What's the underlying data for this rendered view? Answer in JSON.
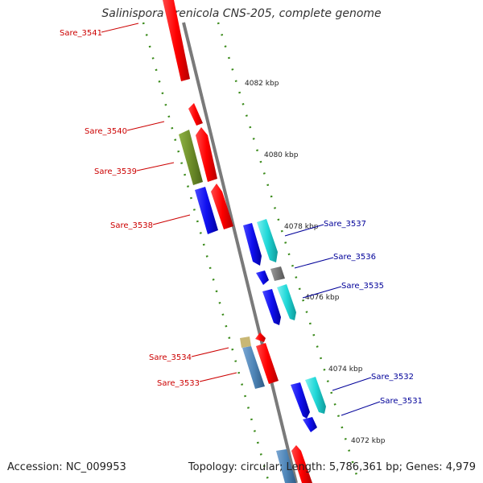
{
  "title": "Salinispora arenicola CNS-205, complete genome",
  "footer": {
    "accession": "Accession: NC_009953",
    "stats": "Topology: circular; Length: 5,786,361 bp; Genes: 4,979"
  },
  "colors": {
    "backbone": "#808080",
    "tick": "#3a8a1a",
    "forward_red": "#ff0000",
    "reverse_blue": "#1a1aff",
    "cyan": "#1fd6d6",
    "steel_blue": "#4f86b8",
    "olive": "#6e8e2a",
    "gray": "#707070",
    "tan": "#c8b774",
    "label_red": "#cc0000",
    "label_blue": "#000099"
  },
  "kbp_marks": [
    "4082 kbp",
    "4080 kbp",
    "4078 kbp",
    "4076 kbp",
    "4074 kbp",
    "4072 kbp"
  ],
  "gene_labels_left": [
    "Sare_3541",
    "Sare_3540",
    "Sare_3539",
    "Sare_3538",
    "Sare_3534",
    "Sare_3533"
  ],
  "gene_labels_right": [
    "Sare_3537",
    "Sare_3536",
    "Sare_3535",
    "Sare_3532",
    "Sare_3531"
  ]
}
